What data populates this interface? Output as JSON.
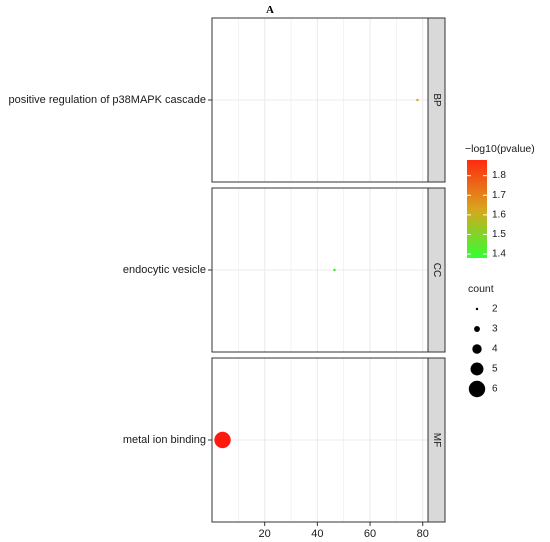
{
  "chart_data": {
    "type": "scatter",
    "title": "A",
    "xlabel": "",
    "ylabel": "",
    "xlim": [
      0,
      82
    ],
    "x_ticks": [
      20,
      40,
      60,
      80
    ],
    "grid": true,
    "facets": [
      {
        "name": "BP",
        "points": [
          {
            "term": "positive regulation of p38MAPK cascade",
            "x": 78,
            "count": 2,
            "neg_log10_pvalue": 1.68,
            "color": "#d7a21c"
          }
        ]
      },
      {
        "name": "CC",
        "points": [
          {
            "term": "endocytic vesicle",
            "x": 46.5,
            "count": 2,
            "neg_log10_pvalue": 1.42,
            "color": "#3be328"
          }
        ]
      },
      {
        "name": "MF",
        "points": [
          {
            "term": "metal ion binding",
            "x": 4,
            "count": 6,
            "neg_log10_pvalue": 1.86,
            "color": "#ff1a10"
          }
        ]
      }
    ],
    "color_legend": {
      "title": "−log10(pvalue)",
      "ticks": [
        "1.8",
        "1.7",
        "1.6",
        "1.5",
        "1.4"
      ],
      "low_color": "#33ff33",
      "high_color": "#ff2a10",
      "range": [
        1.38,
        1.88
      ]
    },
    "size_legend": {
      "title": "count",
      "items": [
        {
          "label": "2",
          "count": 2
        },
        {
          "label": "3",
          "count": 3
        },
        {
          "label": "4",
          "count": 4
        },
        {
          "label": "5",
          "count": 5
        },
        {
          "label": "6",
          "count": 6
        }
      ]
    },
    "colors": {
      "panel_border": "#333333",
      "strip_fill": "#d9d9d9",
      "grid": "#ebebeb",
      "size_key_dot": "#000000"
    }
  }
}
